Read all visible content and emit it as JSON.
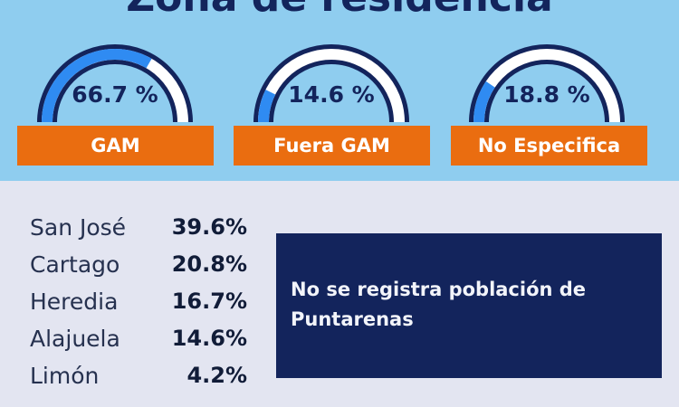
{
  "header": {
    "title": "Zona de residencia"
  },
  "colors": {
    "top_bg": "#8fcdef",
    "bottom_bg": "#e3e5f1",
    "navy": "#13245c",
    "orange": "#ea6d10",
    "gauge_fill": "#2f8bf2"
  },
  "gauges": [
    {
      "value": "66.7 %",
      "fraction": 0.667,
      "label": "GAM"
    },
    {
      "value": "14.6 %",
      "fraction": 0.146,
      "label": "Fuera GAM"
    },
    {
      "value": "18.8 %",
      "fraction": 0.188,
      "label": "No Especifica"
    }
  ],
  "provinces": [
    {
      "name": "San José",
      "pct": "39.6%"
    },
    {
      "name": "Cartago",
      "pct": "20.8%"
    },
    {
      "name": "Heredia",
      "pct": "16.7%"
    },
    {
      "name": "Alajuela",
      "pct": "14.6%"
    },
    {
      "name": "Limón",
      "pct": "4.2%"
    }
  ],
  "note": {
    "text": "No se registra población de Puntarenas"
  }
}
